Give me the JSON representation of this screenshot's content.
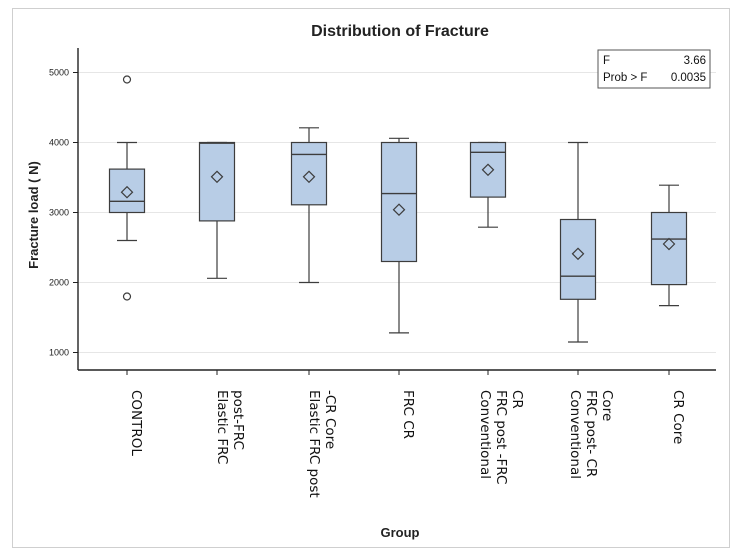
{
  "chart_data": {
    "type": "box",
    "title": "Distribution of Fracture",
    "xlabel": "Group",
    "ylabel": "Fracture load ( N)",
    "ylim": [
      750,
      5350
    ],
    "yticks": [
      1000,
      2000,
      3000,
      4000,
      5000
    ],
    "grid": true,
    "categories": [
      [
        "CONTROL"
      ],
      [
        "Elastic FRC",
        "post-FRC"
      ],
      [
        "Elastic FRC post",
        "-CR Core"
      ],
      [
        "FRC CR"
      ],
      [
        "Conventional",
        "FRC post -FRC",
        "CR"
      ],
      [
        "Conventional",
        "FRC post- CR",
        "Core"
      ],
      [
        "CR Core"
      ]
    ],
    "boxes": [
      {
        "q1": 3000,
        "median": 3160,
        "q3": 3620,
        "whisker_low": 2600,
        "whisker_high": 4000,
        "mean": 3290,
        "outliers": [
          4900,
          1800
        ]
      },
      {
        "q1": 2880,
        "median": 3990,
        "q3": 4000,
        "whisker_low": 2060,
        "whisker_high": 4000,
        "mean": 3510,
        "outliers": []
      },
      {
        "q1": 3110,
        "median": 3830,
        "q3": 4000,
        "whisker_low": 2000,
        "whisker_high": 4210,
        "mean": 3510,
        "outliers": []
      },
      {
        "q1": 2300,
        "median": 3270,
        "q3": 4000,
        "whisker_low": 1280,
        "whisker_high": 4060,
        "mean": 3040,
        "outliers": []
      },
      {
        "q1": 3220,
        "median": 3860,
        "q3": 4000,
        "whisker_low": 2790,
        "whisker_high": 4000,
        "mean": 3610,
        "outliers": []
      },
      {
        "q1": 1760,
        "median": 2090,
        "q3": 2900,
        "whisker_low": 1150,
        "whisker_high": 4000,
        "mean": 2410,
        "outliers": []
      },
      {
        "q1": 1970,
        "median": 2620,
        "q3": 3000,
        "whisker_low": 1670,
        "whisker_high": 3390,
        "mean": 2550,
        "outliers": []
      }
    ],
    "stats": {
      "f_label": "F",
      "f_value": "3.66",
      "p_label": "Prob > F",
      "p_value": "0.0035"
    },
    "colors": {
      "box_fill": "#b8cde6",
      "box_stroke": "#3d3d3d",
      "grid": "#e6e6e6"
    }
  }
}
